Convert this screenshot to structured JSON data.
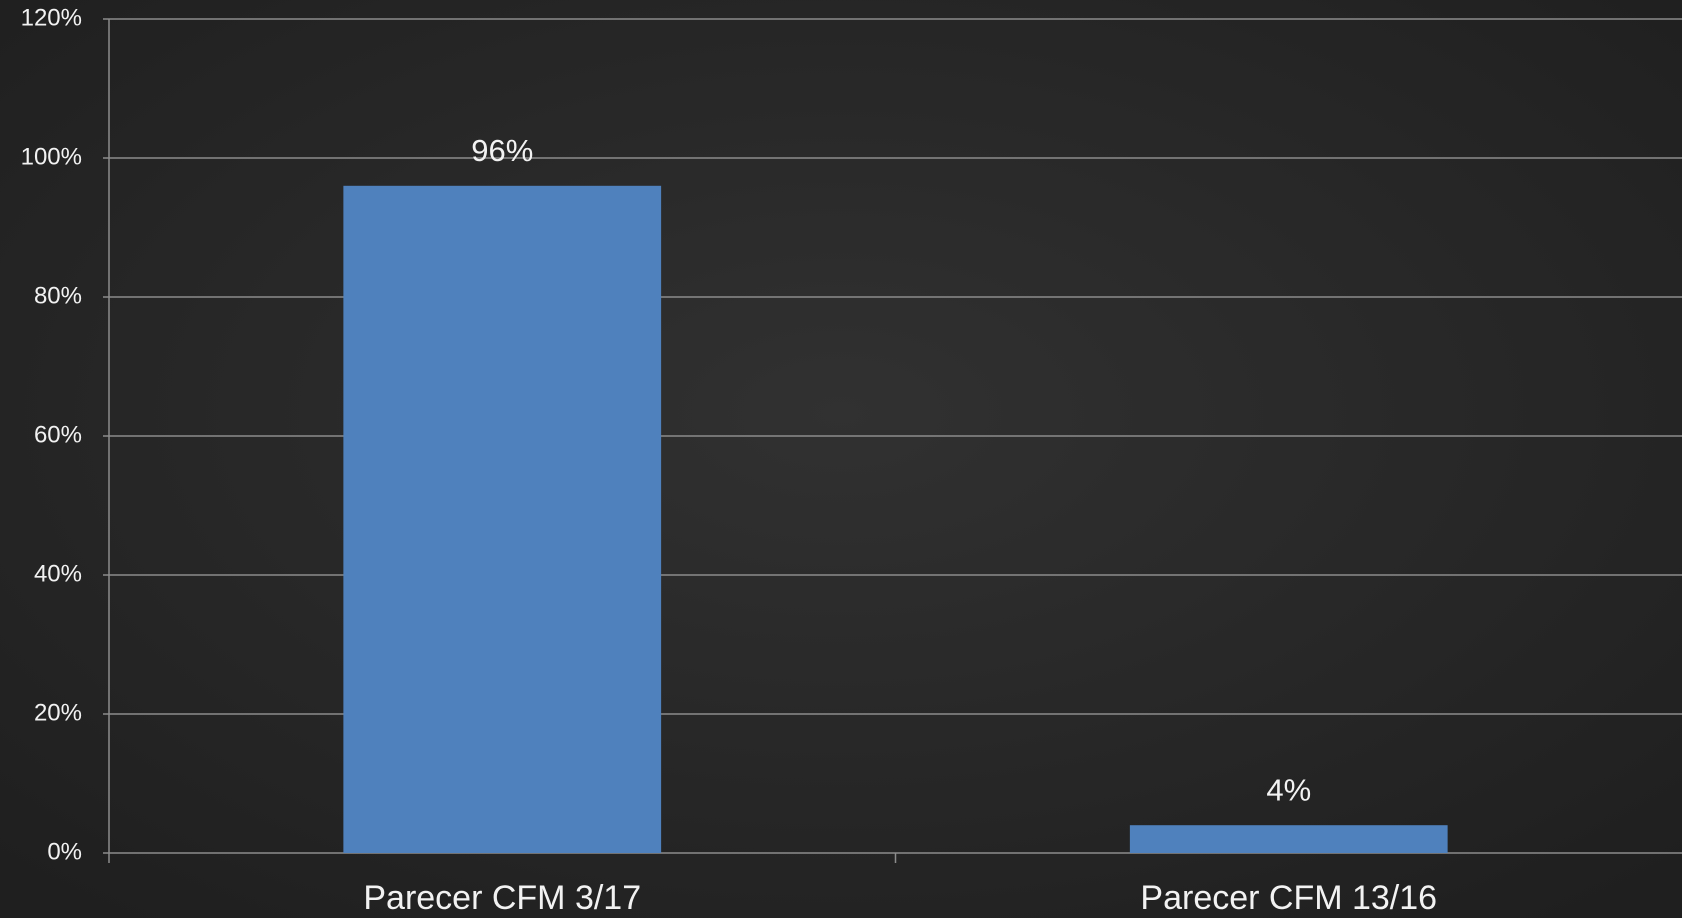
{
  "chart_data": {
    "type": "bar",
    "categories": [
      "Parecer CFM 3/17",
      "Parecer CFM 13/16"
    ],
    "values": [
      96,
      4
    ],
    "value_labels": [
      "96%",
      "4%"
    ],
    "color": "#4f81bd",
    "ylim": [
      0,
      120
    ],
    "yticks": [
      {
        "value": 0,
        "label": "0%"
      },
      {
        "value": 20,
        "label": "20%"
      },
      {
        "value": 40,
        "label": "40%"
      },
      {
        "value": 60,
        "label": "60%"
      },
      {
        "value": 80,
        "label": "80%"
      },
      {
        "value": 100,
        "label": "100%"
      },
      {
        "value": 120,
        "label": "120%"
      }
    ],
    "grid": true
  }
}
